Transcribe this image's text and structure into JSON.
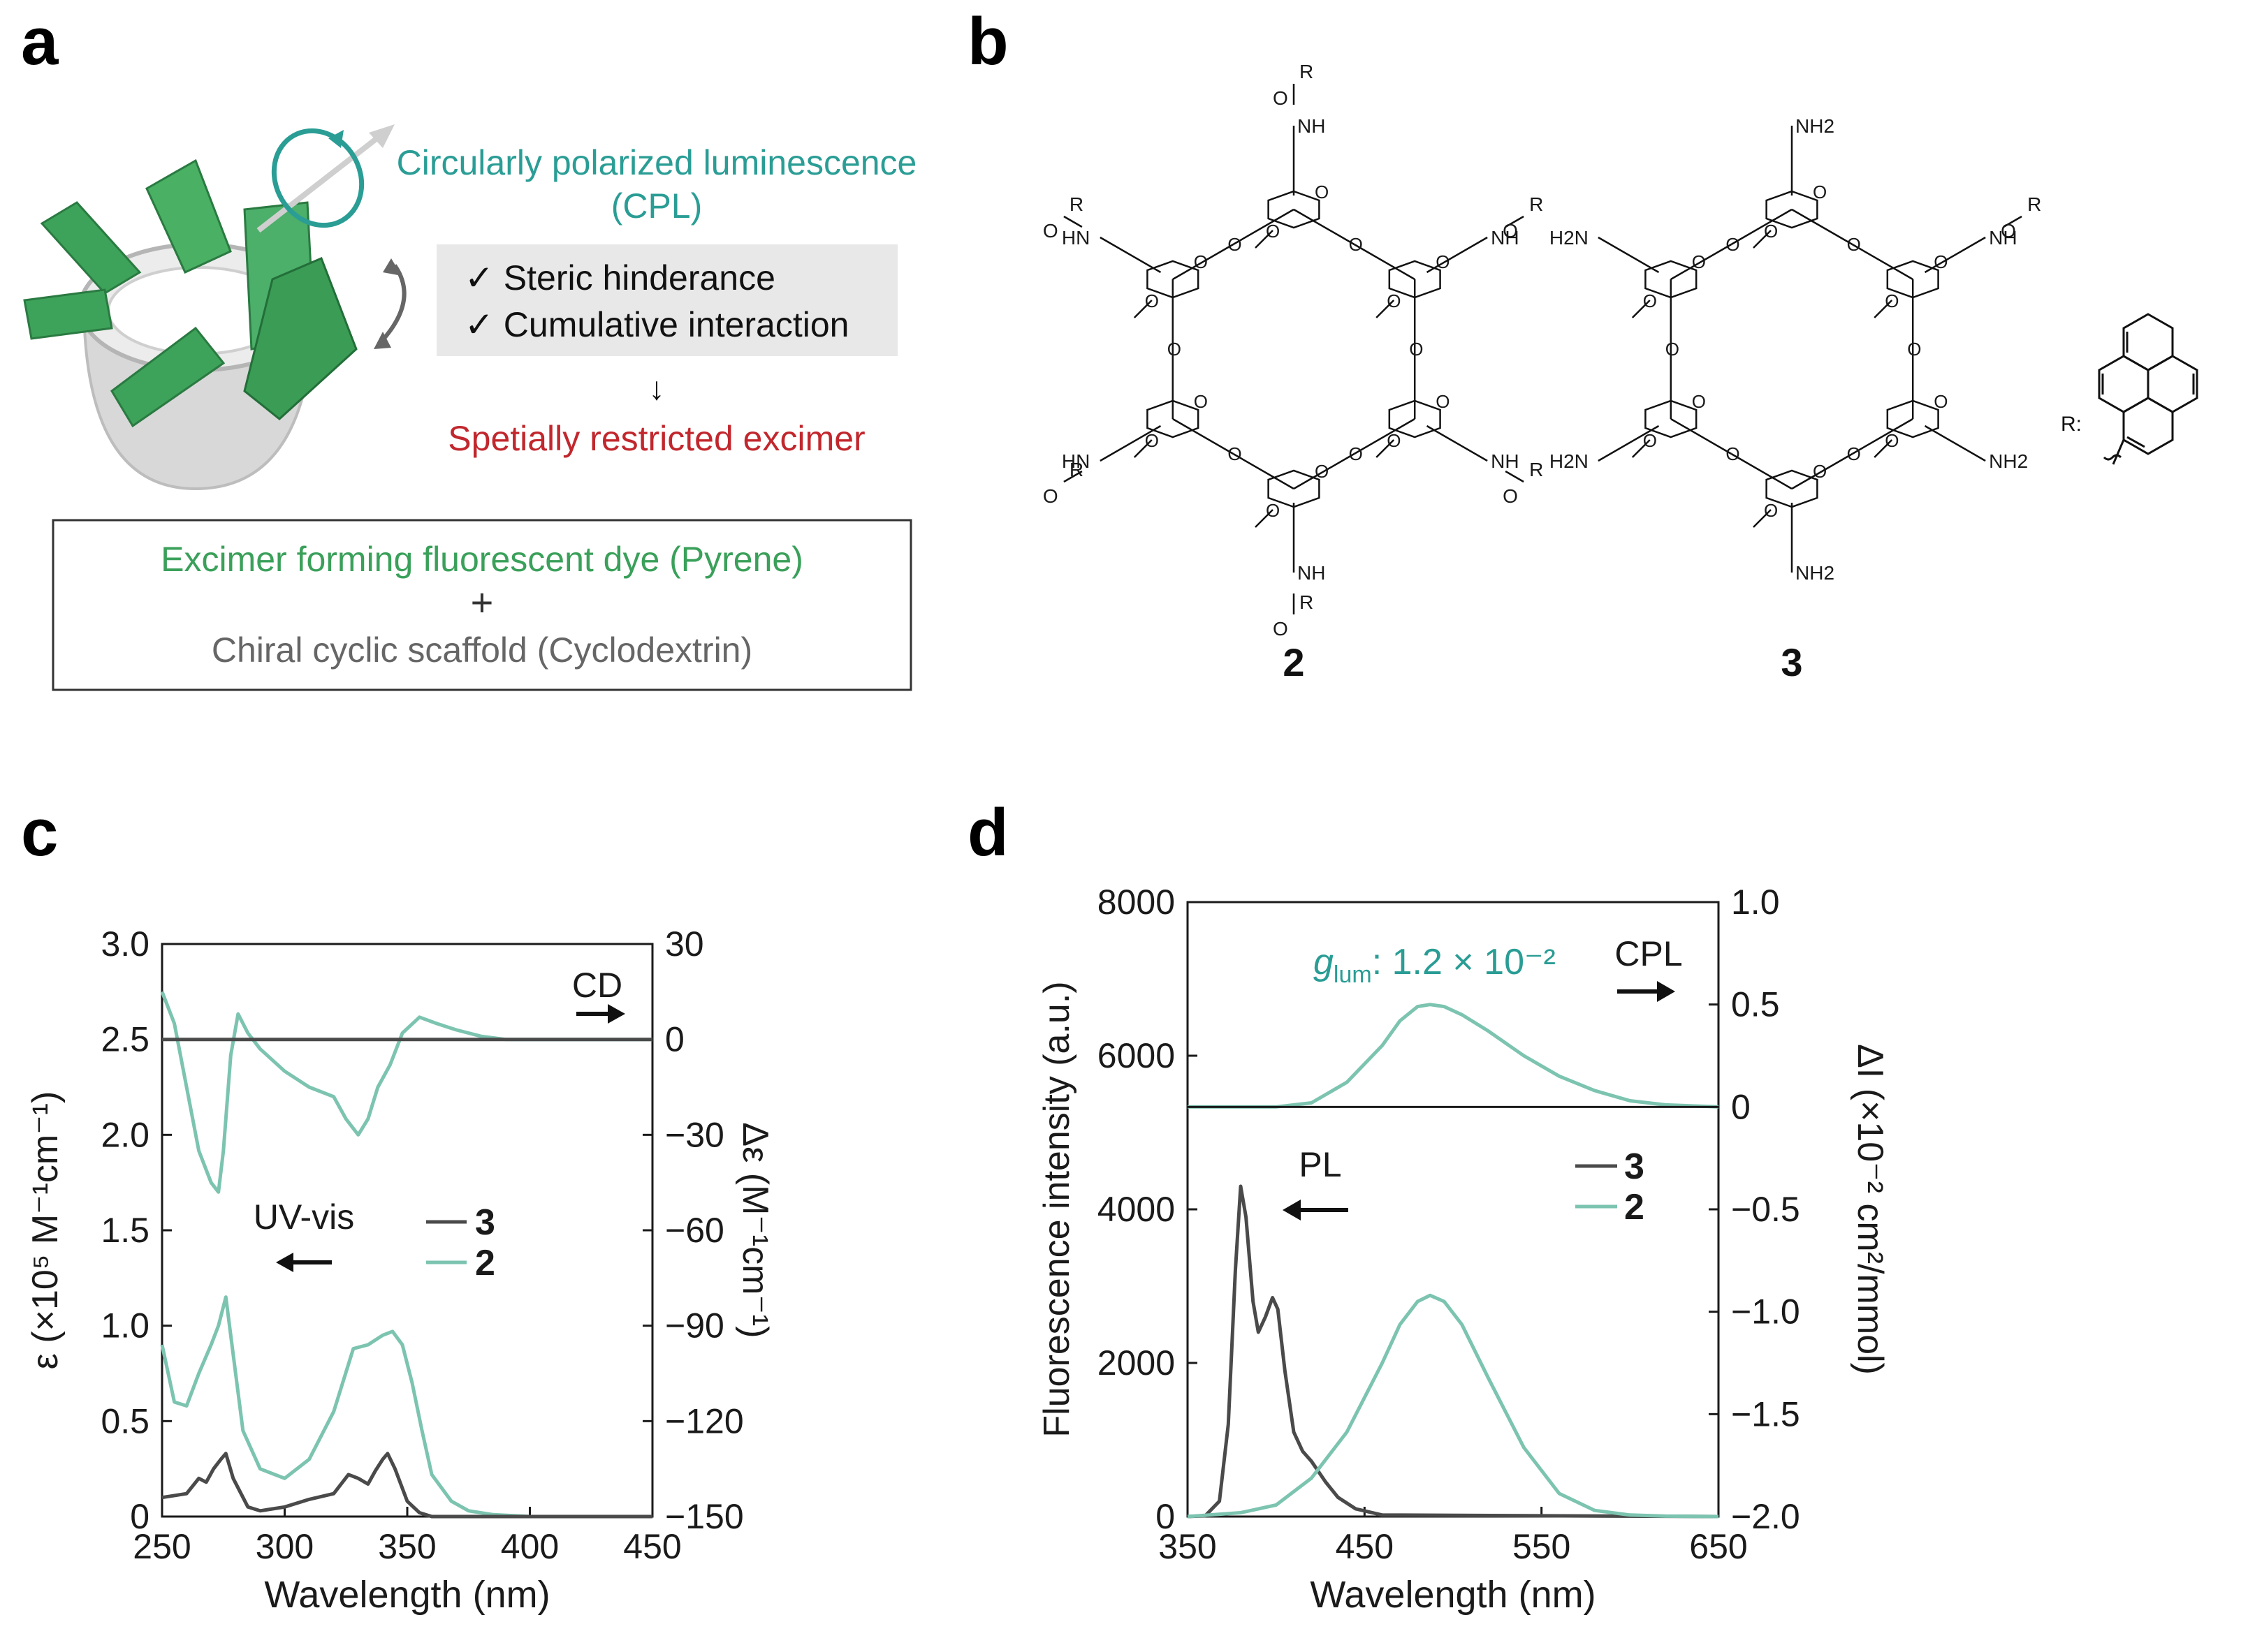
{
  "panels": {
    "a": "a",
    "b": "b",
    "c": "c",
    "d": "d"
  },
  "colors": {
    "teal": "#7cc4b0",
    "teal_text": "#2a9d95",
    "dark": "#4a4a4a",
    "red": "#c1272d",
    "green": "#3aa05a",
    "box_gray": "#e8e8e8"
  },
  "schematic": {
    "cpl_line1": "Circularly polarized luminescence",
    "cpl_line2": "(CPL)",
    "check1": "✓ Steric hinderance",
    "check2": "✓ Cumulative interaction",
    "arrow": "↓",
    "result": "Spetially restricted excimer",
    "dye": "Excimer forming fluorescent dye (Pyrene)",
    "plus": "+",
    "scaffold": "Chiral cyclic scaffold (Cyclodextrin)"
  },
  "structures": {
    "compound_2": "2",
    "compound_3": "3",
    "r_label": "R:",
    "labels": {
      "R": "R",
      "O": "O",
      "NH": "NH",
      "HN": "HN",
      "NH2": "NH2",
      "H2N": "H2N"
    }
  },
  "chart_data": [
    {
      "panel": "c",
      "type": "line",
      "xlabel": "Wavelength (nm)",
      "ylabel": "ε (×10⁵ M⁻¹cm⁻¹)",
      "y2label": "Δε (M⁻¹cm⁻¹)",
      "xlim": [
        250,
        450
      ],
      "ylim": [
        0,
        3.0
      ],
      "y2lim": [
        -150,
        30
      ],
      "xticks": [
        "250",
        "300",
        "350",
        "400",
        "450"
      ],
      "yticks": [
        "0",
        "0.5",
        "1.0",
        "1.5",
        "2.0",
        "2.5",
        "3.0"
      ],
      "y2ticks": [
        "30",
        "0",
        "−30",
        "−60",
        "−90",
        "−120",
        "−150"
      ],
      "annotations": {
        "cd": "CD",
        "uv": "UV-vis"
      },
      "legend": [
        {
          "name": "3",
          "color": "#4a4a4a"
        },
        {
          "name": "2",
          "color": "#7cc4b0"
        }
      ],
      "series": [
        {
          "name": "2",
          "axis": "left",
          "color": "#7cc4b0",
          "x": [
            250,
            255,
            260,
            265,
            270,
            273,
            276,
            279,
            283,
            290,
            300,
            310,
            320,
            328,
            334,
            340,
            344,
            348,
            352,
            356,
            360,
            368,
            375,
            385,
            400,
            450
          ],
          "y": [
            0.9,
            0.6,
            0.58,
            0.75,
            0.9,
            1.0,
            1.15,
            0.85,
            0.45,
            0.25,
            0.2,
            0.3,
            0.55,
            0.88,
            0.9,
            0.95,
            0.97,
            0.9,
            0.7,
            0.45,
            0.22,
            0.08,
            0.03,
            0.01,
            0.0,
            0.0
          ]
        },
        {
          "name": "3",
          "axis": "left",
          "color": "#4a4a4a",
          "x": [
            250,
            260,
            265,
            268,
            271,
            274,
            276,
            279,
            285,
            290,
            300,
            310,
            320,
            326,
            330,
            334,
            337,
            340,
            342,
            345,
            350,
            355,
            360,
            400,
            450
          ],
          "y": [
            0.1,
            0.12,
            0.2,
            0.18,
            0.25,
            0.3,
            0.33,
            0.2,
            0.05,
            0.03,
            0.05,
            0.09,
            0.12,
            0.22,
            0.2,
            0.17,
            0.24,
            0.3,
            0.33,
            0.25,
            0.08,
            0.02,
            0.0,
            0.0,
            0.0
          ]
        },
        {
          "name": "2",
          "axis": "right",
          "color": "#7cc4b0",
          "x": [
            250,
            255,
            260,
            265,
            270,
            273,
            275,
            278,
            281,
            285,
            290,
            300,
            310,
            320,
            325,
            330,
            334,
            338,
            343,
            348,
            355,
            362,
            370,
            380,
            390,
            400,
            450
          ],
          "y": [
            15,
            5,
            -15,
            -35,
            -45,
            -48,
            -35,
            -5,
            8,
            2,
            -3,
            -10,
            -15,
            -18,
            -25,
            -30,
            -25,
            -15,
            -8,
            2,
            7,
            5,
            3,
            1,
            0,
            0,
            0
          ]
        },
        {
          "name": "3",
          "axis": "right",
          "color": "#4a4a4a",
          "x": [
            250,
            300,
            350,
            400,
            450
          ],
          "y": [
            0,
            0,
            0,
            0,
            0
          ]
        }
      ]
    },
    {
      "panel": "d",
      "type": "line",
      "xlabel": "Wavelength (nm)",
      "ylabel": "Fluorescence intensity (a.u.)",
      "y2label": "ΔI (×10⁻² cm²/mmol)",
      "xlim": [
        350,
        650
      ],
      "ylim": [
        0,
        8000
      ],
      "y2lim": [
        -2.0,
        1.0
      ],
      "xticks": [
        "350",
        "450",
        "550",
        "650"
      ],
      "yticks": [
        "0",
        "2000",
        "4000",
        "6000",
        "8000"
      ],
      "y2ticks": [
        "1.0",
        "0.5",
        "0",
        "−0.5",
        "−1.0",
        "−1.5",
        "−2.0"
      ],
      "annotations": {
        "cpl": "CPL",
        "pl": "PL",
        "glum": "g",
        "glum_sub": "lum",
        "glum_value": ": 1.2 × 10⁻²"
      },
      "legend": [
        {
          "name": "3",
          "color": "#4a4a4a"
        },
        {
          "name": "2",
          "color": "#7cc4b0"
        }
      ],
      "series": [
        {
          "name": "3",
          "axis": "left",
          "color": "#4a4a4a",
          "x": [
            350,
            360,
            368,
            373,
            377,
            380,
            383,
            387,
            390,
            394,
            398,
            401,
            405,
            410,
            415,
            420,
            428,
            435,
            445,
            460,
            650
          ],
          "y": [
            0,
            10,
            200,
            1200,
            3200,
            4300,
            3900,
            2800,
            2400,
            2600,
            2850,
            2700,
            1900,
            1100,
            850,
            720,
            450,
            250,
            100,
            20,
            0
          ]
        },
        {
          "name": "2",
          "axis": "left",
          "color": "#7cc4b0",
          "x": [
            350,
            380,
            400,
            420,
            440,
            460,
            470,
            480,
            487,
            495,
            505,
            520,
            540,
            560,
            580,
            600,
            620,
            650
          ],
          "y": [
            0,
            50,
            150,
            500,
            1100,
            2000,
            2500,
            2800,
            2880,
            2800,
            2500,
            1800,
            900,
            300,
            80,
            20,
            5,
            0
          ]
        },
        {
          "name": "2",
          "axis": "right",
          "color": "#7cc4b0",
          "x": [
            350,
            400,
            420,
            440,
            460,
            470,
            480,
            487,
            495,
            505,
            520,
            540,
            560,
            580,
            600,
            620,
            650
          ],
          "y": [
            0,
            0,
            0.02,
            0.12,
            0.3,
            0.42,
            0.49,
            0.5,
            0.49,
            0.45,
            0.37,
            0.25,
            0.15,
            0.08,
            0.03,
            0.01,
            0
          ]
        }
      ]
    }
  ]
}
